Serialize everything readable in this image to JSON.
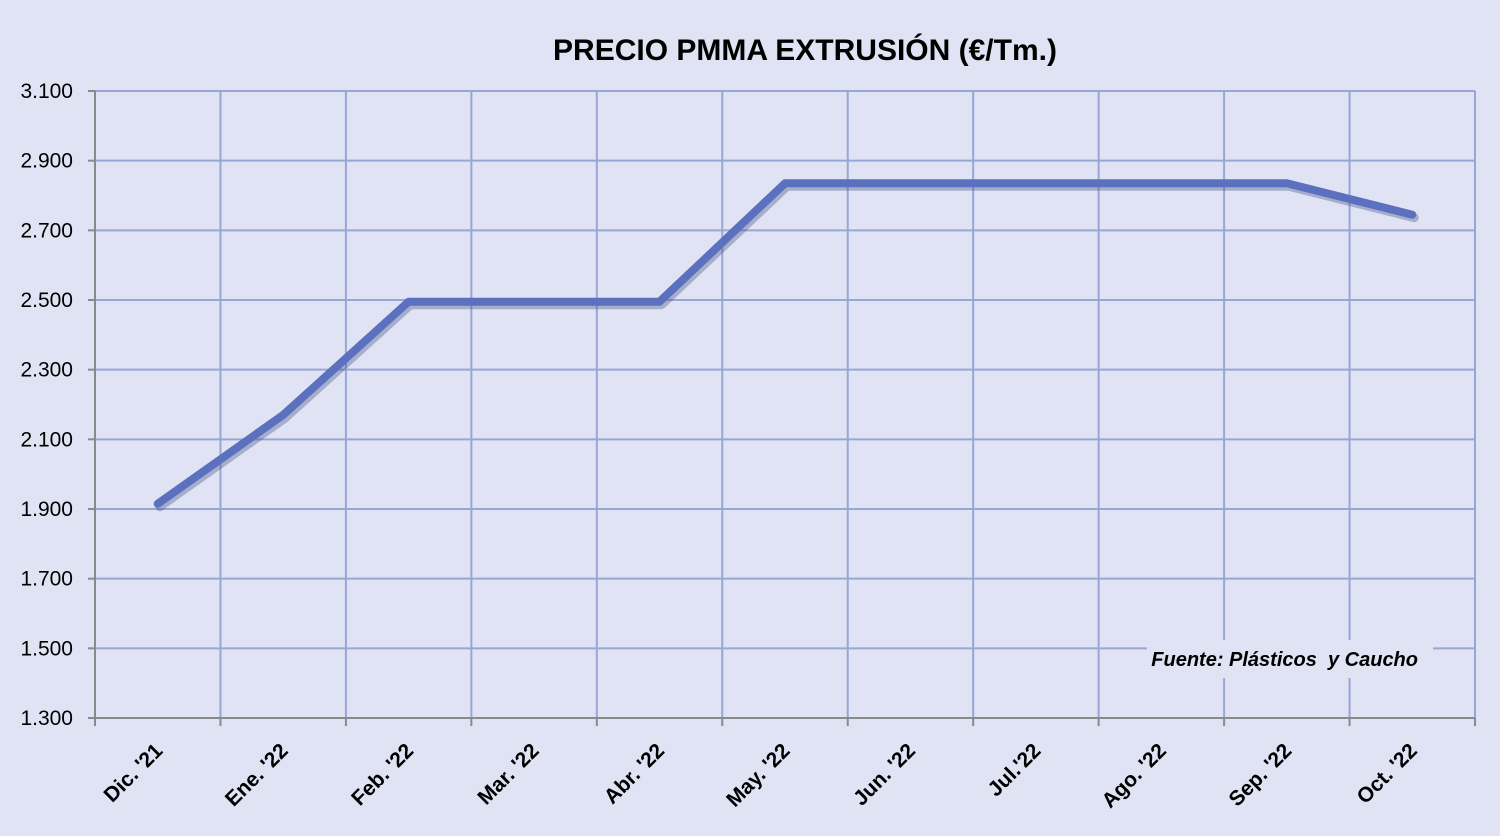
{
  "chart_data": {
    "type": "line",
    "title": "PRECIO PMMA EXTRUSIÓN (€/Tm.)",
    "xlabel": "",
    "ylabel": "",
    "categories": [
      "Dic. '21",
      "Ene. '22",
      "Feb. '22",
      "Mar. '22",
      "Abr. '22",
      "May. '22",
      "Jun. '22",
      "Jul.'22",
      "Ago. '22",
      "Sep. '22",
      "Oct. '22"
    ],
    "series": [
      {
        "values": [
          1915,
          2170,
          2495,
          2495,
          2495,
          2835,
          2835,
          2835,
          2835,
          2835,
          2745
        ]
      }
    ],
    "ylim": [
      1300,
      3100
    ],
    "yticks": [
      1300,
      1500,
      1700,
      1900,
      2100,
      2300,
      2500,
      2700,
      2900,
      3100
    ],
    "ytick_labels": [
      "1.300",
      "1.500",
      "1.700",
      "1.900",
      "2.100",
      "2.300",
      "2.500",
      "2.700",
      "2.900",
      "3.100"
    ],
    "grid": true,
    "annotation": "Fuente: Plásticos  y Caucho",
    "colors": {
      "background": "#dfe3f3",
      "line": "#5b70bf",
      "grid": "#98a6d6",
      "axis": "#8a8a8a"
    }
  }
}
